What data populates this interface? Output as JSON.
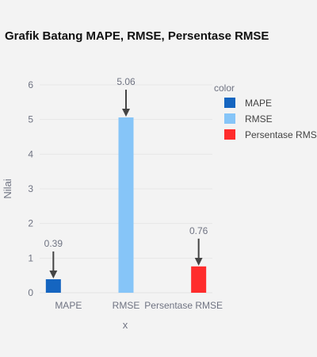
{
  "chart_data": {
    "type": "bar",
    "title": "Grafik Batang MAPE, RMSE, Persentase RMSE",
    "xlabel": "x",
    "ylabel": "Nilai",
    "categories": [
      "MAPE",
      "RMSE",
      "Persentase RMSE"
    ],
    "series": [
      {
        "name": "MAPE",
        "values": [
          0.39,
          null,
          null
        ],
        "color": "#1565c0"
      },
      {
        "name": "RMSE",
        "values": [
          null,
          5.06,
          null
        ],
        "color": "#86c5f8"
      },
      {
        "name": "Persentase RMSE",
        "values": [
          null,
          null,
          0.76
        ],
        "color": "#ff2c2c"
      }
    ],
    "legend": {
      "title": "color",
      "entries": [
        "MAPE",
        "RMSE",
        "Persentase RMS"
      ],
      "placement": "top-right"
    },
    "annotations": [
      {
        "text": "0.39",
        "category": "MAPE",
        "value": 0.39
      },
      {
        "text": "5.06",
        "category": "RMSE",
        "value": 5.06
      },
      {
        "text": "0.76",
        "category": "Persentase RMSE",
        "value": 0.76
      }
    ],
    "ylim": [
      0,
      6.2
    ],
    "yticks": [
      0,
      1,
      2,
      3,
      4,
      5,
      6
    ],
    "grid": true
  }
}
